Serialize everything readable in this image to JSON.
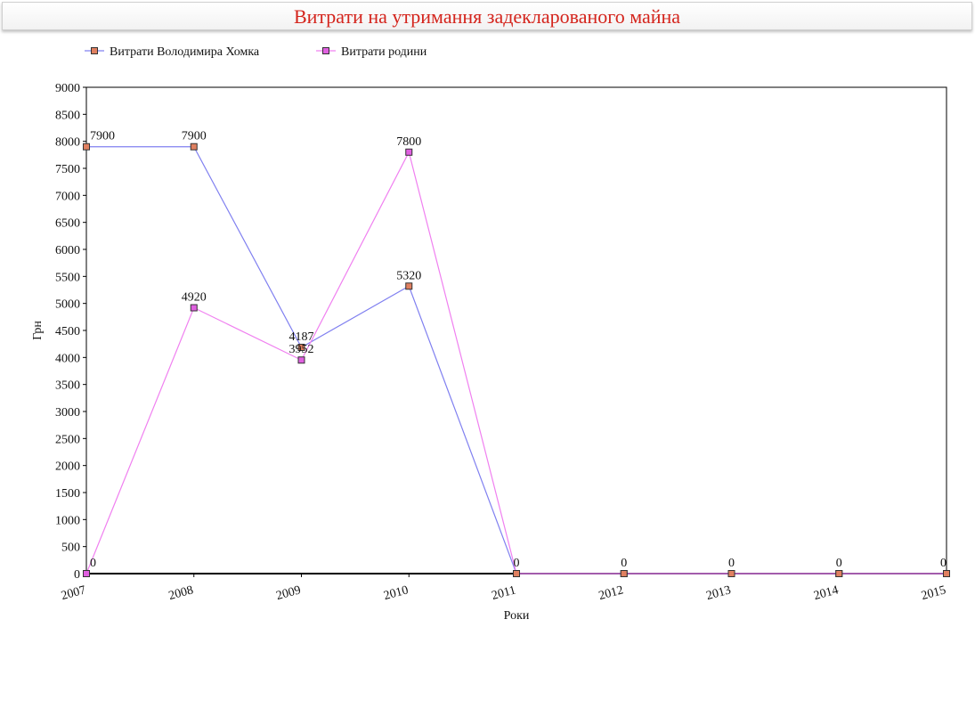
{
  "chart_data": {
    "type": "line",
    "title": "Витрати на утримання задекларованого майна",
    "xlabel": "Роки",
    "ylabel": "Грн",
    "categories": [
      "2007",
      "2008",
      "2009",
      "2010",
      "2011",
      "2012",
      "2013",
      "2014",
      "2015"
    ],
    "ylim": [
      0,
      9000
    ],
    "ytick_step": 500,
    "yticks": [
      "0",
      "500",
      "1000",
      "1500",
      "2000",
      "2500",
      "3000",
      "3500",
      "4000",
      "4500",
      "5000",
      "5500",
      "6000",
      "6500",
      "7000",
      "7500",
      "8000",
      "8500",
      "9000"
    ],
    "grid": false,
    "legend_position": "top-left",
    "series": [
      {
        "name": "Витрати Володимира Хомка",
        "values": [
          7900,
          7900,
          4187,
          5320,
          0,
          0,
          0,
          0,
          0
        ],
        "labels": [
          "7900",
          "7900",
          "4187",
          "5320",
          "0",
          "0",
          "0",
          "0",
          "0"
        ],
        "line_color": "#8080f0",
        "marker_color": "#e08060"
      },
      {
        "name": "Витрати родини",
        "values": [
          0,
          4920,
          3952,
          7800,
          0,
          0,
          0,
          0,
          0
        ],
        "labels": [
          "0",
          "4920",
          "3952",
          "7800",
          "",
          "",
          "",
          "",
          ""
        ],
        "line_color": "#f080f0",
        "marker_color": "#e060e0"
      }
    ]
  }
}
